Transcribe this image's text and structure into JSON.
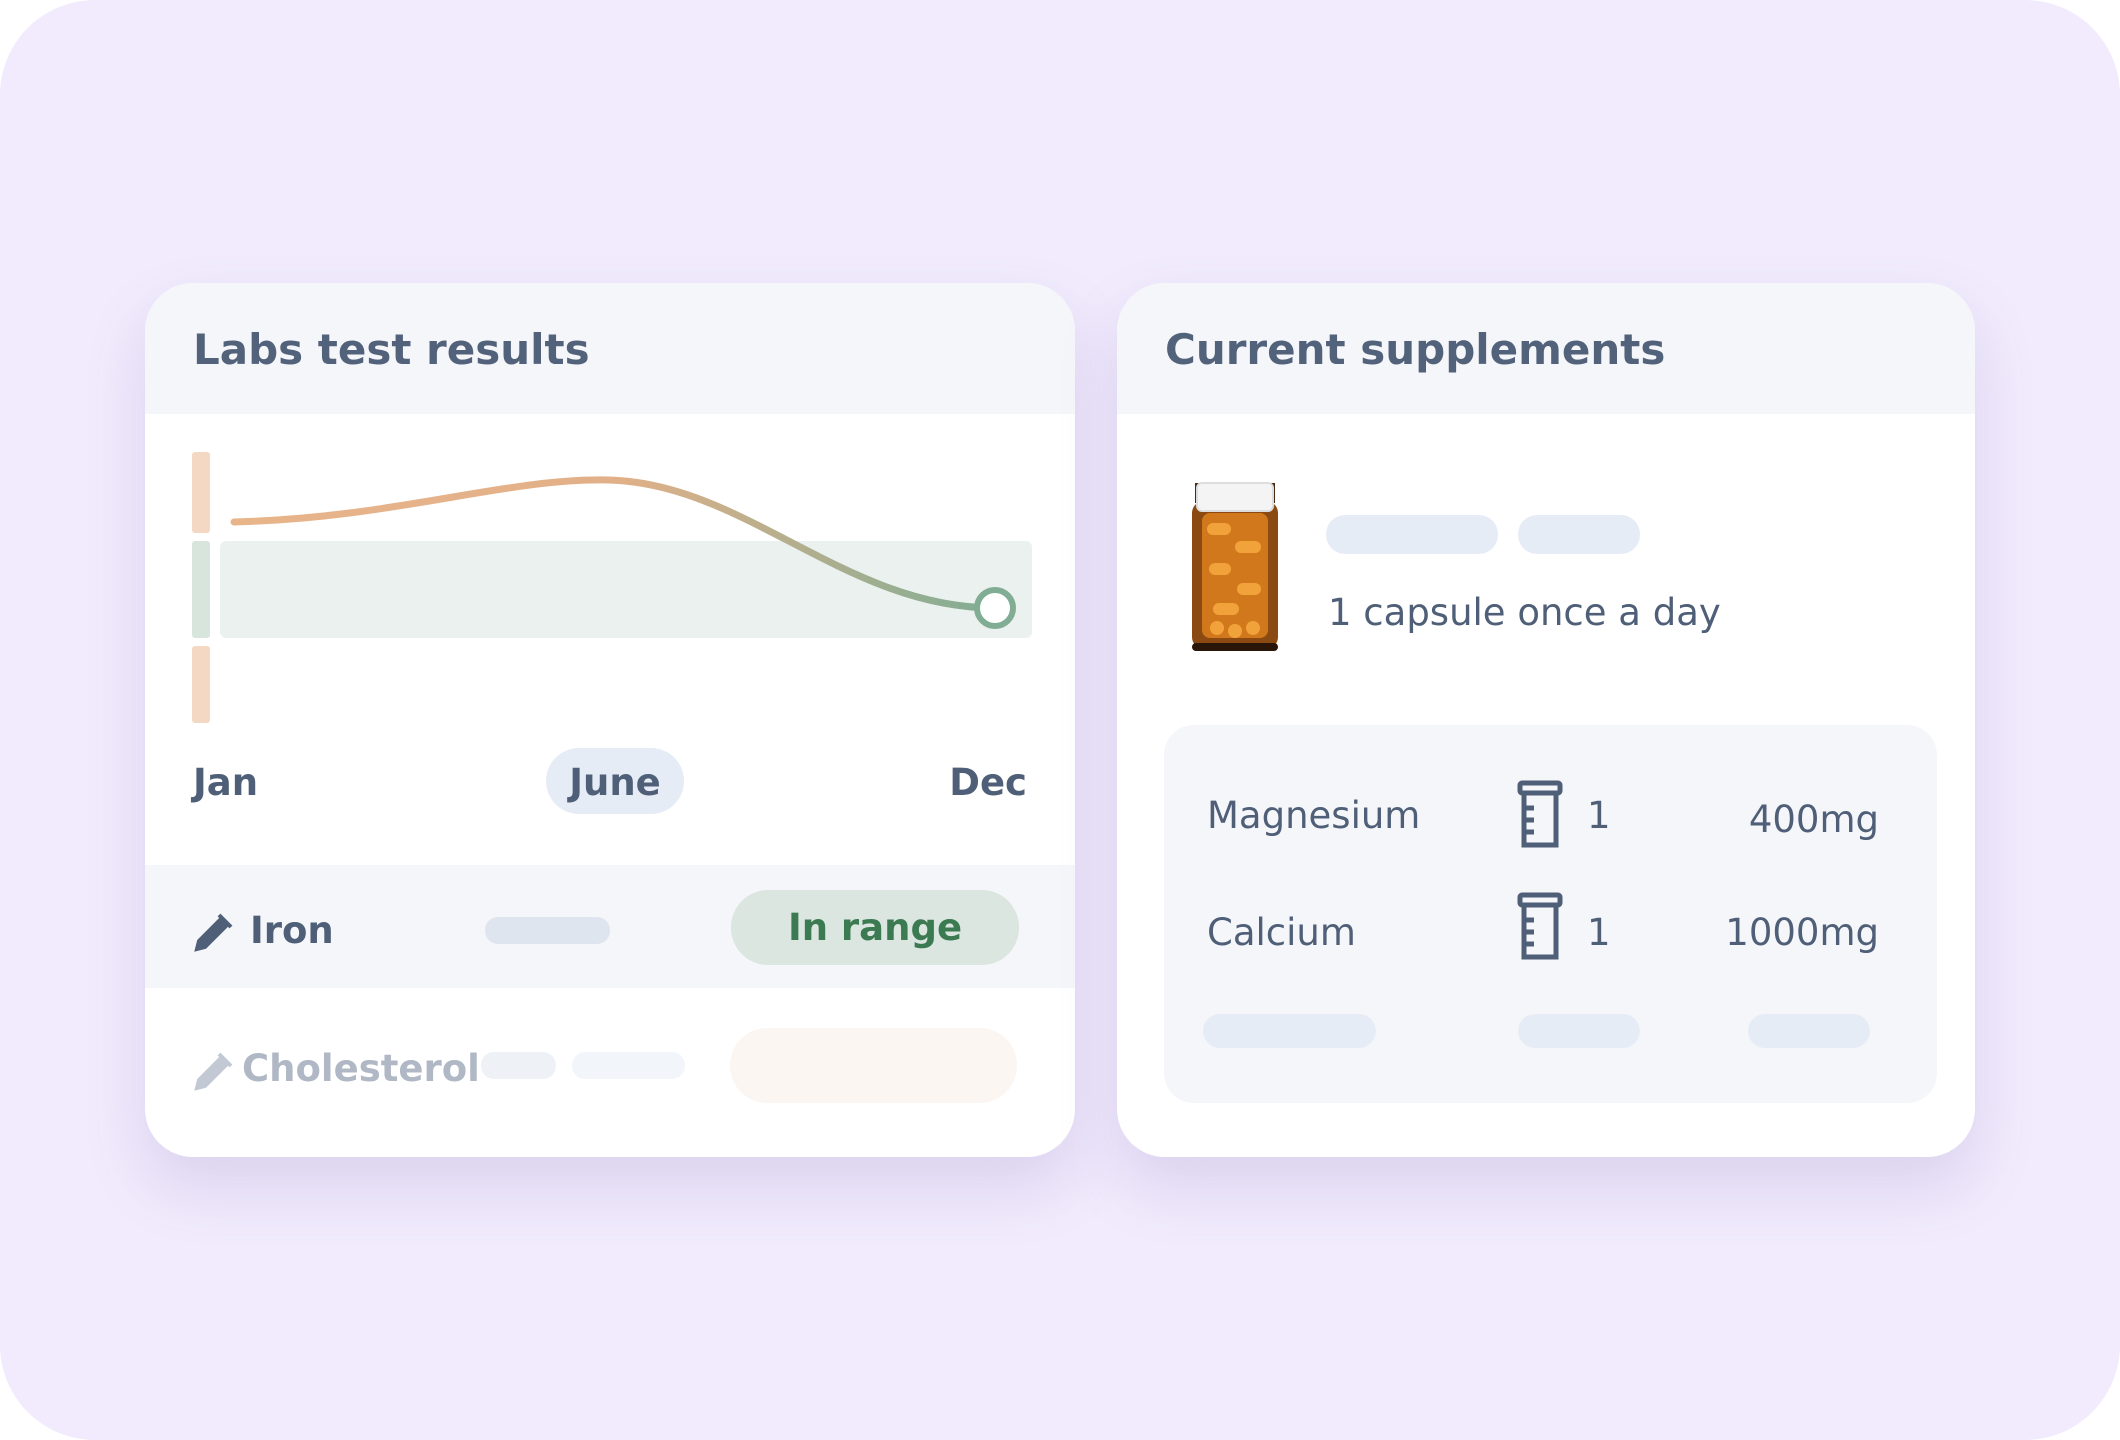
{
  "labs": {
    "title": "Labs test results",
    "months": [
      "Jan",
      "June",
      "Dec"
    ],
    "rows": [
      {
        "name": "Iron",
        "status": "In range"
      },
      {
        "name": "Cholesterol"
      }
    ]
  },
  "supplements": {
    "title": "Current supplements",
    "dosage": "1 capsule once a day",
    "rows": [
      {
        "name": "Magnesium",
        "count": "1",
        "amount": "400mg"
      },
      {
        "name": "Calcium",
        "count": "1",
        "amount": "1000mg"
      }
    ]
  }
}
